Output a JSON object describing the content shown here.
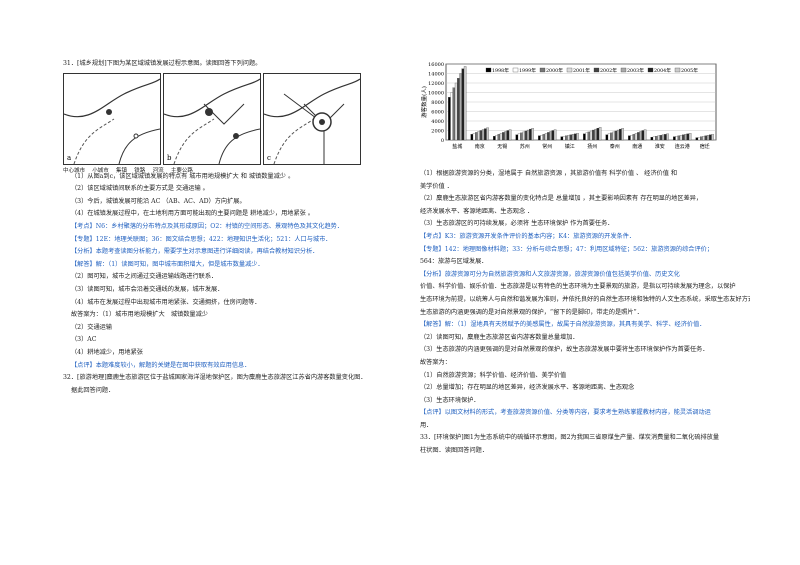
{
  "left": {
    "q31_title": "31．[城乡规划]下图为某区域城镇发展过程示意图。读图回答下列问题。",
    "fig_labels": [
      "a",
      "b",
      "c"
    ],
    "legend": [
      "中心城市",
      "小城市",
      "集镇",
      "铁路",
      "河流",
      "主要公路"
    ],
    "lines": [
      "（1）从图a到c，该区域城镇发展的特点有 城市用地规模扩大 和 城镇数量减少 。",
      "（2）该区域城镇间联系的主要方式是 交通运输 。",
      "（3）今后，城镇发展可能沿 AC （AB、AC、AD）方向扩展。",
      "（4）在城镇发展过程中，在土地利用方面可能出现的主要问题是 耕地减少，用地紧张 。",
      "【考点】N6：乡村聚落的分布特点及其形成原因；O2：村镇的空间形态、景观特色及其文化趋势．",
      "【专题】12E：地理关联图；36：图文结合思想；422：地理知识生活化；521：人口与城市．",
      "【分析】本题考查读图分析能力，需要学生对示意图进行详细阅读，再结合教材知识分析．",
      "【解答】解：（1）读图可知，图中城市面积增大，但是城市数量减少．",
      "（2）图可知，城市之间通过交通运输线路进行联系．",
      "（3）读图可知，城市会沿着交通线的发展，城市发展．",
      "（4）城市在发展过程中出现城市用地紧张、交通拥挤，住房问题等．",
      "故答案为：（1）城市用地规模扩大　城镇数量减少",
      "（2）交通运输",
      "（3）AC",
      "（4）耕地减少，用地紧张",
      "【点评】本题难度较小，解题的关键是在图中获取有效应用信息．",
      "32．[旅游地理]麋鹿生态旅游区位于盐城国家海洋湿地保护区，图为麋鹿生态旅游区江苏省内游客数量变化图．",
      "据此回答问题．"
    ]
  },
  "right": {
    "chart_data": {
      "type": "bar",
      "ylabel": "游客数量(人)",
      "ylim": [
        0,
        16000
      ],
      "yticks": [
        "0",
        "2000",
        "4000",
        "6000",
        "8000",
        "10000",
        "12000",
        "14000",
        "16000"
      ],
      "categories": [
        "盐城",
        "南京",
        "无锡",
        "苏州",
        "常州",
        "镇江",
        "扬州",
        "泰州",
        "南通",
        "淮安",
        "连云港",
        "宿迁"
      ],
      "series": [
        {
          "name": "1998年",
          "values": [
            9000,
            1200,
            800,
            1100,
            900,
            700,
            1300,
            1100,
            900,
            600,
            700,
            500
          ]
        },
        {
          "name": "1999年",
          "values": [
            10000,
            1400,
            1000,
            1300,
            1000,
            800,
            1500,
            1300,
            1000,
            700,
            800,
            600
          ]
        },
        {
          "name": "2000年",
          "values": [
            11000,
            1600,
            1200,
            1500,
            1200,
            900,
            1700,
            1500,
            1200,
            800,
            900,
            700
          ]
        },
        {
          "name": "2001年",
          "values": [
            12000,
            1800,
            1400,
            1700,
            1400,
            1000,
            1900,
            1700,
            1400,
            900,
            1000,
            800
          ]
        },
        {
          "name": "2002年",
          "values": [
            13000,
            2000,
            1600,
            1900,
            1600,
            1100,
            2100,
            1900,
            1600,
            1000,
            1100,
            900
          ]
        },
        {
          "name": "2003年",
          "values": [
            14000,
            2200,
            1800,
            2100,
            1800,
            1200,
            2300,
            2100,
            1800,
            1100,
            1200,
            1000
          ]
        },
        {
          "name": "2004年",
          "values": [
            15000,
            2400,
            2000,
            2300,
            2000,
            1300,
            2500,
            2300,
            2000,
            1200,
            1300,
            1100
          ]
        },
        {
          "name": "2005年",
          "values": [
            15500,
            2600,
            2200,
            2500,
            2200,
            1400,
            2700,
            2500,
            2200,
            1300,
            1400,
            1200
          ]
        }
      ]
    },
    "lines": [
      "（1）根据旅游资源的分类，湿地属于 自然旅游资源 ，其旅游价值有 科学价值 、 经济价值 和",
      "美学价值 ．",
      "（2）麋鹿生态旅游区省内游客数量的变化特点是 总量增加 ，其主要影响因素有 存在明显的地区差异，",
      "经济发展水平、客源地距离、生态观念 ．",
      "（3）生态旅游区的可持续发展，必须将 生态环境保护 作为首要任务．",
      "【考点】K3：旅游资源开发条件评价的基本内容；K4：旅游资源的开发条件．",
      "【专题】142：地理图像材料题；33：分析与综合思想；47：利用区域特征；562：旅游资源的综合评价；",
      "564：旅游与区域发展．",
      "【分析】旅游资源可分为自然旅游资源和人文旅游资源，旅游资源价值包括美学价值、历史文化",
      "价值、科学价值、娱乐价值．生态旅游是以有特色的生态环境为主要景观的旅游，是指以可持续发展为理念，以保护",
      "生态环境为前提，以统筹人与自然和谐发展为准则，并依托良好的自然生态环境和独特的人文生态系统，采取生态友好方式．",
      "生态旅游的内涵更强调的是对自然景观的保护，“留下的是脚印，带走的是照片”．",
      "【解答】解：（1）湿地具有天然赋予的美感属性，故属于自然旅游资源，其具有美学、科学、经济价值．",
      "（2）读图可知，麋鹿生态旅游区省内游客数量总量增加．",
      "（3）生态旅游的内涵更强调的是对自然景观的保护，故生态旅游发展中要将生态环境保护作为首要任务．",
      "故答案为：",
      "（1）自然旅游资源；科学价值、经济价值、美学价值",
      "（2）总量增加；存在明显的地区差异，经济发展水平、客源地距离、生态观念",
      "（3）生态环境保护．",
      "【点评】以图文材料的形式，考查旅游资源价值、分类等内容，要求考生熟练掌握教材内容，能灵活调动运",
      "用．",
      "",
      "33．[环境保护]图1为生态系统中的硫循环示意图，图2为我国三省原煤生产量、煤炭消费量和二氧化硫排放量",
      "柱状图．读图回答问题．"
    ]
  }
}
